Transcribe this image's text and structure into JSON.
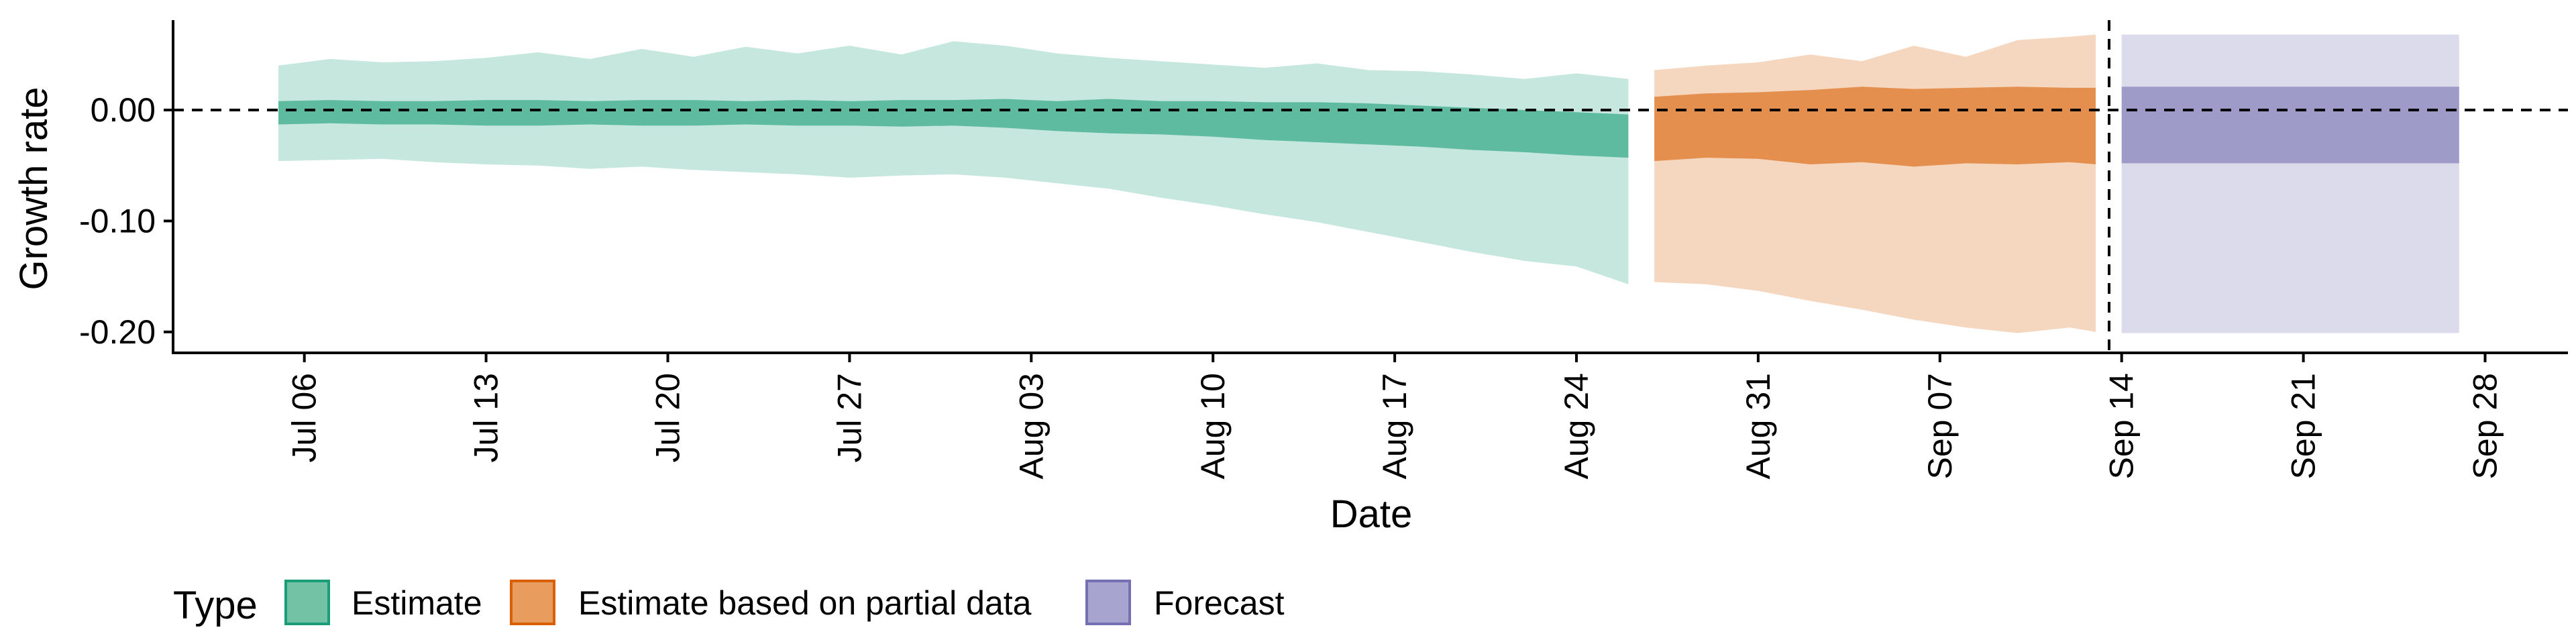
{
  "chart_data": {
    "type": "area",
    "title": "",
    "xlabel": "Date",
    "ylabel": "Growth rate",
    "grid": false,
    "legend_position": "bottom-left",
    "xlim": [
      "2020-07-01",
      "2020-09-30"
    ],
    "ylim": [
      -0.22,
      0.08
    ],
    "x_ticks": [
      {
        "date": "2020-07-06",
        "label": "Jul 06"
      },
      {
        "date": "2020-07-13",
        "label": "Jul 13"
      },
      {
        "date": "2020-07-20",
        "label": "Jul 20"
      },
      {
        "date": "2020-07-27",
        "label": "Jul 27"
      },
      {
        "date": "2020-08-03",
        "label": "Aug 03"
      },
      {
        "date": "2020-08-10",
        "label": "Aug 10"
      },
      {
        "date": "2020-08-17",
        "label": "Aug 17"
      },
      {
        "date": "2020-08-24",
        "label": "Aug 24"
      },
      {
        "date": "2020-08-31",
        "label": "Aug 31"
      },
      {
        "date": "2020-09-07",
        "label": "Sep 07"
      },
      {
        "date": "2020-09-14",
        "label": "Sep 14"
      },
      {
        "date": "2020-09-21",
        "label": "Sep 21"
      },
      {
        "date": "2020-09-28",
        "label": "Sep 28"
      }
    ],
    "y_ticks": [
      {
        "value": 0.0,
        "label": "0.00"
      },
      {
        "value": -0.1,
        "label": "-0.10"
      },
      {
        "value": -0.2,
        "label": "-0.20"
      }
    ],
    "reference_lines": {
      "horizontal_y": 0.0,
      "vertical_date": "2020-09-13",
      "style": "dashed"
    },
    "legend": {
      "title": "Type",
      "items": [
        {
          "label": "Estimate",
          "fill": "#74c2a6",
          "stroke": "#1b9e77"
        },
        {
          "label": "Estimate based on partial data",
          "fill": "#e89c5e",
          "stroke": "#d95f02"
        },
        {
          "label": "Forecast",
          "fill": "#a8a4d0",
          "stroke": "#7570b3"
        }
      ]
    },
    "series": [
      {
        "name": "Estimate",
        "color": "#1b9e77",
        "outer_opacity": 0.25,
        "inner_opacity": 0.6,
        "dates": [
          "2020-07-05",
          "2020-07-07",
          "2020-07-09",
          "2020-07-11",
          "2020-07-13",
          "2020-07-15",
          "2020-07-17",
          "2020-07-19",
          "2020-07-21",
          "2020-07-23",
          "2020-07-25",
          "2020-07-27",
          "2020-07-29",
          "2020-07-31",
          "2020-08-02",
          "2020-08-04",
          "2020-08-06",
          "2020-08-08",
          "2020-08-10",
          "2020-08-12",
          "2020-08-14",
          "2020-08-16",
          "2020-08-18",
          "2020-08-20",
          "2020-08-22",
          "2020-08-24",
          "2020-08-26"
        ],
        "outer_upper": [
          0.04,
          0.046,
          0.043,
          0.044,
          0.047,
          0.052,
          0.046,
          0.055,
          0.048,
          0.057,
          0.051,
          0.058,
          0.05,
          0.062,
          0.058,
          0.051,
          0.047,
          0.044,
          0.041,
          0.038,
          0.042,
          0.036,
          0.035,
          0.032,
          0.028,
          0.033,
          0.028
        ],
        "inner_upper": [
          0.008,
          0.009,
          0.008,
          0.008,
          0.009,
          0.009,
          0.008,
          0.009,
          0.009,
          0.008,
          0.009,
          0.008,
          0.009,
          0.009,
          0.01,
          0.008,
          0.01,
          0.008,
          0.008,
          0.007,
          0.007,
          0.006,
          0.004,
          0.002,
          0.0,
          -0.002,
          -0.004
        ],
        "inner_lower": [
          -0.013,
          -0.012,
          -0.013,
          -0.013,
          -0.014,
          -0.014,
          -0.013,
          -0.014,
          -0.014,
          -0.013,
          -0.014,
          -0.014,
          -0.015,
          -0.014,
          -0.016,
          -0.019,
          -0.021,
          -0.022,
          -0.024,
          -0.027,
          -0.029,
          -0.031,
          -0.033,
          -0.036,
          -0.038,
          -0.041,
          -0.043
        ],
        "outer_lower": [
          -0.046,
          -0.045,
          -0.044,
          -0.047,
          -0.049,
          -0.05,
          -0.053,
          -0.051,
          -0.054,
          -0.056,
          -0.058,
          -0.061,
          -0.059,
          -0.058,
          -0.061,
          -0.066,
          -0.071,
          -0.079,
          -0.086,
          -0.094,
          -0.101,
          -0.11,
          -0.119,
          -0.128,
          -0.136,
          -0.141,
          -0.157
        ]
      },
      {
        "name": "Estimate based on partial data",
        "color": "#d95f02",
        "outer_opacity": 0.25,
        "inner_opacity": 0.6,
        "dates": [
          "2020-08-27",
          "2020-08-29",
          "2020-08-31",
          "2020-09-02",
          "2020-09-04",
          "2020-09-06",
          "2020-09-08",
          "2020-09-10",
          "2020-09-12",
          "2020-09-13"
        ],
        "outer_upper": [
          0.036,
          0.04,
          0.043,
          0.05,
          0.044,
          0.058,
          0.048,
          0.063,
          0.066,
          0.068
        ],
        "inner_upper": [
          0.012,
          0.015,
          0.016,
          0.018,
          0.021,
          0.019,
          0.02,
          0.021,
          0.02,
          0.02
        ],
        "inner_lower": [
          -0.046,
          -0.043,
          -0.044,
          -0.049,
          -0.047,
          -0.051,
          -0.048,
          -0.049,
          -0.047,
          -0.049
        ],
        "outer_lower": [
          -0.155,
          -0.157,
          -0.163,
          -0.172,
          -0.18,
          -0.189,
          -0.196,
          -0.201,
          -0.196,
          -0.2
        ]
      },
      {
        "name": "Forecast",
        "color": "#7570b3",
        "outer_opacity": 0.25,
        "inner_opacity": 0.6,
        "dates": [
          "2020-09-14",
          "2020-09-27"
        ],
        "outer_upper": [
          0.068,
          0.068
        ],
        "inner_upper": [
          0.021,
          0.021
        ],
        "inner_lower": [
          -0.048,
          -0.048
        ],
        "outer_lower": [
          -0.201,
          -0.201
        ]
      }
    ]
  }
}
